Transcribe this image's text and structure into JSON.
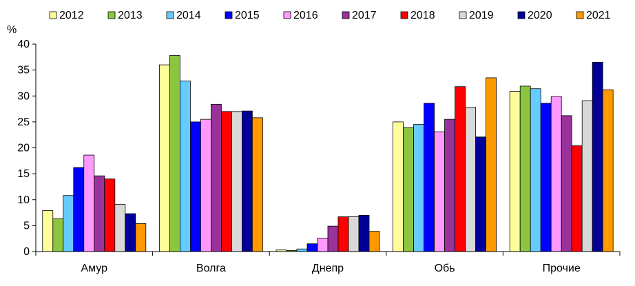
{
  "chart_data": {
    "type": "bar",
    "ylabel": "%",
    "ylim": [
      0,
      40
    ],
    "yticks": [
      0,
      5,
      10,
      15,
      20,
      25,
      30,
      35,
      40
    ],
    "grid": false,
    "legend_position": "top",
    "categories": [
      "Амур",
      "Волга",
      "Днепр",
      "Обь",
      "Прочие"
    ],
    "series": [
      {
        "name": "2012",
        "color": "#FFFF99",
        "values": [
          7.9,
          36.0,
          0.3,
          25.0,
          30.9
        ]
      },
      {
        "name": "2013",
        "color": "#8CC640",
        "values": [
          6.3,
          37.8,
          0.2,
          23.9,
          31.9
        ]
      },
      {
        "name": "2014",
        "color": "#66CCFF",
        "values": [
          10.8,
          32.9,
          0.5,
          24.5,
          31.4
        ]
      },
      {
        "name": "2015",
        "color": "#0000FF",
        "values": [
          16.2,
          25.0,
          1.5,
          28.6,
          28.6
        ]
      },
      {
        "name": "2016",
        "color": "#FF99FF",
        "values": [
          18.6,
          25.5,
          2.6,
          23.1,
          29.9
        ]
      },
      {
        "name": "2017",
        "color": "#993399",
        "values": [
          14.6,
          28.4,
          4.9,
          25.5,
          26.2
        ]
      },
      {
        "name": "2018",
        "color": "#FF0000",
        "values": [
          14.0,
          27.0,
          6.7,
          31.8,
          20.4
        ]
      },
      {
        "name": "2019",
        "color": "#D9D9D9",
        "values": [
          9.1,
          27.0,
          6.7,
          27.8,
          29.1
        ]
      },
      {
        "name": "2020",
        "color": "#000099",
        "values": [
          7.3,
          27.1,
          7.0,
          22.1,
          36.5
        ]
      },
      {
        "name": "2021",
        "color": "#FF9900",
        "values": [
          5.4,
          25.8,
          3.9,
          33.5,
          31.2
        ]
      }
    ]
  }
}
